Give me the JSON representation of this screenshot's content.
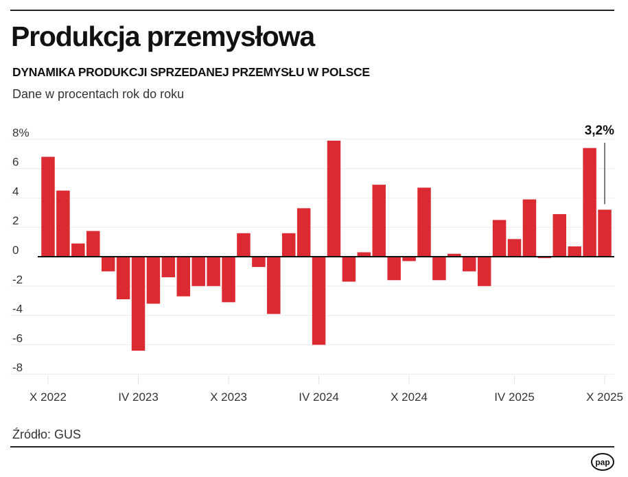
{
  "header": {
    "title": "Produkcja przemysłowa",
    "subtitle": "DYNAMIKA PRODUKCJI SPRZEDANEJ PRZEMYSŁU W POLSCE",
    "description": "Dane w procentach rok do roku"
  },
  "chart_data": {
    "type": "bar",
    "title": "Produkcja przemysłowa",
    "subtitle": "DYNAMIKA PRODUKCJI SPRZEDANEJ PRZEMYSŁU W POLSCE",
    "xlabel": "",
    "ylabel": "",
    "ylim": [
      -8,
      8
    ],
    "y_ticks": [
      "8%",
      "6",
      "4",
      "2",
      "0",
      "-2",
      "-4",
      "-6",
      "-8"
    ],
    "y_tick_values": [
      8,
      6,
      4,
      2,
      0,
      -2,
      -4,
      -6,
      -8
    ],
    "grid": true,
    "bar_color": "#dc2a32",
    "categories": [
      "X 2022",
      "",
      "",
      "",
      "",
      "",
      "IV 2023",
      "",
      "",
      "",
      "",
      "",
      "X 2023",
      "",
      "",
      "",
      "",
      "",
      "IV 2024",
      "",
      "",
      "",
      "",
      "",
      "X 2024",
      "",
      "",
      "",
      "",
      "",
      "",
      "IV 2025",
      "",
      "",
      "",
      "",
      "",
      "X 2025"
    ],
    "values": [
      6.8,
      4.5,
      0.9,
      1.75,
      -1.0,
      -2.9,
      -6.4,
      -3.2,
      -1.4,
      -2.7,
      -2.0,
      -2.0,
      -3.1,
      1.6,
      -0.7,
      -3.9,
      1.6,
      3.3,
      -6.0,
      7.9,
      -1.7,
      0.3,
      4.9,
      -1.6,
      -0.3,
      4.7,
      -1.6,
      0.2,
      -1.0,
      -2.0,
      2.5,
      1.2,
      3.9,
      -0.1,
      2.9,
      0.7,
      7.4,
      3.2
    ],
    "annotation": {
      "text": "3,2%",
      "value": 3.2
    }
  },
  "footer": {
    "source": "Źródło: GUS",
    "logo": "pap"
  }
}
